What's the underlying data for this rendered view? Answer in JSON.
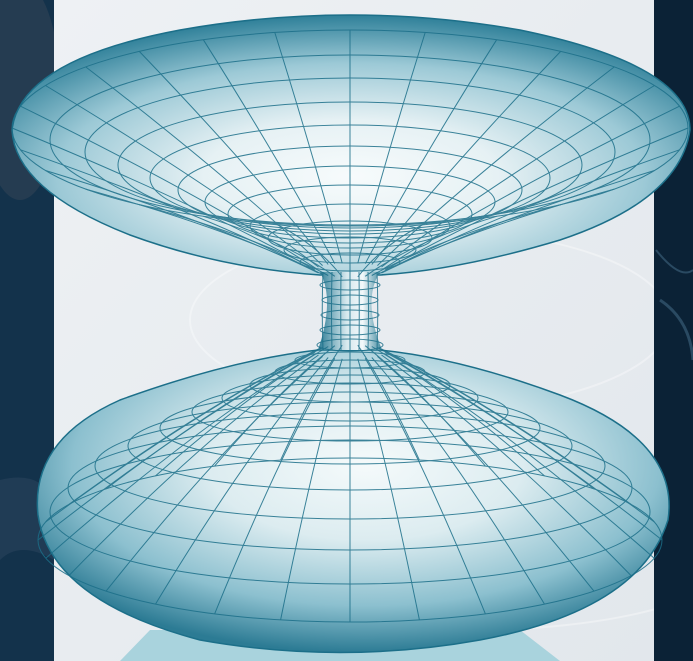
{
  "image": {
    "subject": "wormhole-embedding-surface",
    "colors": {
      "backdrop": "#0f2a40",
      "backdrop_dark": "#071a2a",
      "panel": "#ebeef2",
      "surface_light": "#f4fafc",
      "surface_mid": "#8fc3d1",
      "surface_dark": "#2e7f98",
      "grid_line": "#1c6f89",
      "base_glow": "#a9d3dd"
    }
  }
}
